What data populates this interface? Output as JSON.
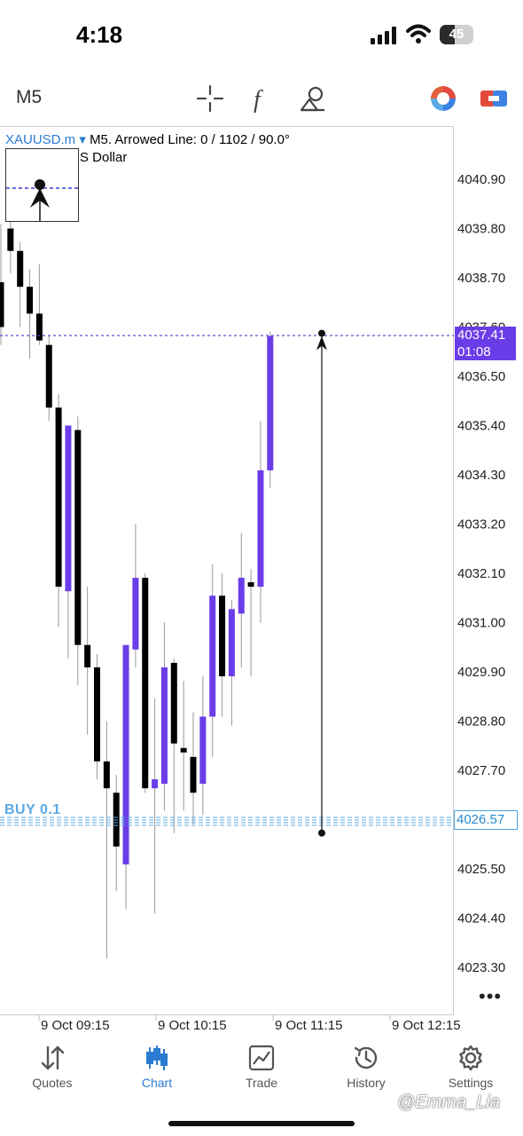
{
  "status_bar": {
    "time": "4:18",
    "battery": "45",
    "battery_level": 0.45
  },
  "toolbar": {
    "timeframe": "M5",
    "icons": [
      "crosshair-icon",
      "indicator-f-icon",
      "objects-icon",
      "color-wheel-icon",
      "account-switch-icon"
    ]
  },
  "chart": {
    "symbol": "XAUUSD.m",
    "caret": "▾",
    "info": "M5. Arrowed Line: 0 / 1102 / 90.0°",
    "subtitle": "S Dollar",
    "current_price": "4037.41",
    "countdown": "01:08",
    "buy_price": "4026.57",
    "buy_label": "BUY 0.1",
    "more": "•••"
  },
  "chart_data": {
    "type": "candlestick",
    "y_ticks": [
      "4040.90",
      "4039.80",
      "4038.70",
      "4037.60",
      "4036.50",
      "4035.40",
      "4034.30",
      "4033.20",
      "4032.10",
      "4031.00",
      "4029.90",
      "4028.80",
      "4027.70",
      "4025.50",
      "4024.40",
      "4023.30"
    ],
    "ylim": [
      4022.8,
      4041.9
    ],
    "x_ticks": [
      "9 Oct 09:15",
      "9 Oct 10:15",
      "9 Oct 11:15",
      "9 Oct 12:15"
    ],
    "colors": {
      "bull": "#6a3de8",
      "bear": "#000000",
      "price_line": "#4a3fd0",
      "buy_line": "#5aa9e6"
    },
    "candles": [
      {
        "o": 4038.6,
        "h": 4039.9,
        "l": 4037.2,
        "c": 4037.6
      },
      {
        "o": 4039.8,
        "h": 4040.2,
        "l": 4038.8,
        "c": 4039.3
      },
      {
        "o": 4039.3,
        "h": 4039.5,
        "l": 4037.6,
        "c": 4038.5
      },
      {
        "o": 4038.5,
        "h": 4038.9,
        "l": 4036.9,
        "c": 4037.9
      },
      {
        "o": 4037.9,
        "h": 4039.0,
        "l": 4037.2,
        "c": 4037.3
      },
      {
        "o": 4037.2,
        "h": 4037.4,
        "l": 4035.5,
        "c": 4035.8
      },
      {
        "o": 4035.8,
        "h": 4036.1,
        "l": 4030.9,
        "c": 4031.8
      },
      {
        "o": 4031.7,
        "h": 4035.3,
        "l": 4030.2,
        "c": 4035.4
      },
      {
        "o": 4035.3,
        "h": 4035.6,
        "l": 4029.6,
        "c": 4030.5
      },
      {
        "o": 4030.5,
        "h": 4031.8,
        "l": 4028.5,
        "c": 4030.0
      },
      {
        "o": 4030.0,
        "h": 4030.3,
        "l": 4027.5,
        "c": 4027.9
      },
      {
        "o": 4027.9,
        "h": 4028.8,
        "l": 4023.5,
        "c": 4027.3
      },
      {
        "o": 4027.2,
        "h": 4027.6,
        "l": 4025.0,
        "c": 4026.0
      },
      {
        "o": 4025.6,
        "h": 4030.5,
        "l": 4024.6,
        "c": 4030.5
      },
      {
        "o": 4030.4,
        "h": 4033.2,
        "l": 4030.0,
        "c": 4032.0
      },
      {
        "o": 4032.0,
        "h": 4032.1,
        "l": 4027.2,
        "c": 4027.3
      },
      {
        "o": 4027.3,
        "h": 4029.3,
        "l": 4024.5,
        "c": 4027.5
      },
      {
        "o": 4027.4,
        "h": 4031.0,
        "l": 4026.8,
        "c": 4030.0
      },
      {
        "o": 4030.1,
        "h": 4030.2,
        "l": 4026.3,
        "c": 4028.3
      },
      {
        "o": 4028.2,
        "h": 4029.7,
        "l": 4026.8,
        "c": 4028.1
      },
      {
        "o": 4028.0,
        "h": 4029.0,
        "l": 4026.5,
        "c": 4027.2
      },
      {
        "o": 4027.4,
        "h": 4029.8,
        "l": 4026.7,
        "c": 4028.9
      },
      {
        "o": 4028.9,
        "h": 4032.3,
        "l": 4028.0,
        "c": 4031.6
      },
      {
        "o": 4031.6,
        "h": 4032.1,
        "l": 4028.9,
        "c": 4029.8
      },
      {
        "o": 4029.8,
        "h": 4031.5,
        "l": 4028.7,
        "c": 4031.3
      },
      {
        "o": 4031.2,
        "h": 4033.0,
        "l": 4030.0,
        "c": 4032.0
      },
      {
        "o": 4031.9,
        "h": 4032.2,
        "l": 4029.8,
        "c": 4031.8
      },
      {
        "o": 4031.8,
        "h": 4035.5,
        "l": 4031.0,
        "c": 4034.4
      },
      {
        "o": 4034.4,
        "h": 4037.5,
        "l": 4034.0,
        "c": 4037.4
      }
    ],
    "current_price": 4037.41,
    "buy_price": 4026.57,
    "arrowed_line": {
      "from": 4026.3,
      "to": 4037.4
    }
  },
  "tabs": [
    {
      "label": "Quotes",
      "icon": "quotes-arrows-icon",
      "active": false
    },
    {
      "label": "Chart",
      "icon": "chart-candles-icon",
      "active": true
    },
    {
      "label": "Trade",
      "icon": "trade-chart-icon",
      "active": false
    },
    {
      "label": "History",
      "icon": "history-clock-icon",
      "active": false
    },
    {
      "label": "Settings",
      "icon": "settings-gear-icon",
      "active": false
    }
  ],
  "watermark": "@Emma_Lia"
}
